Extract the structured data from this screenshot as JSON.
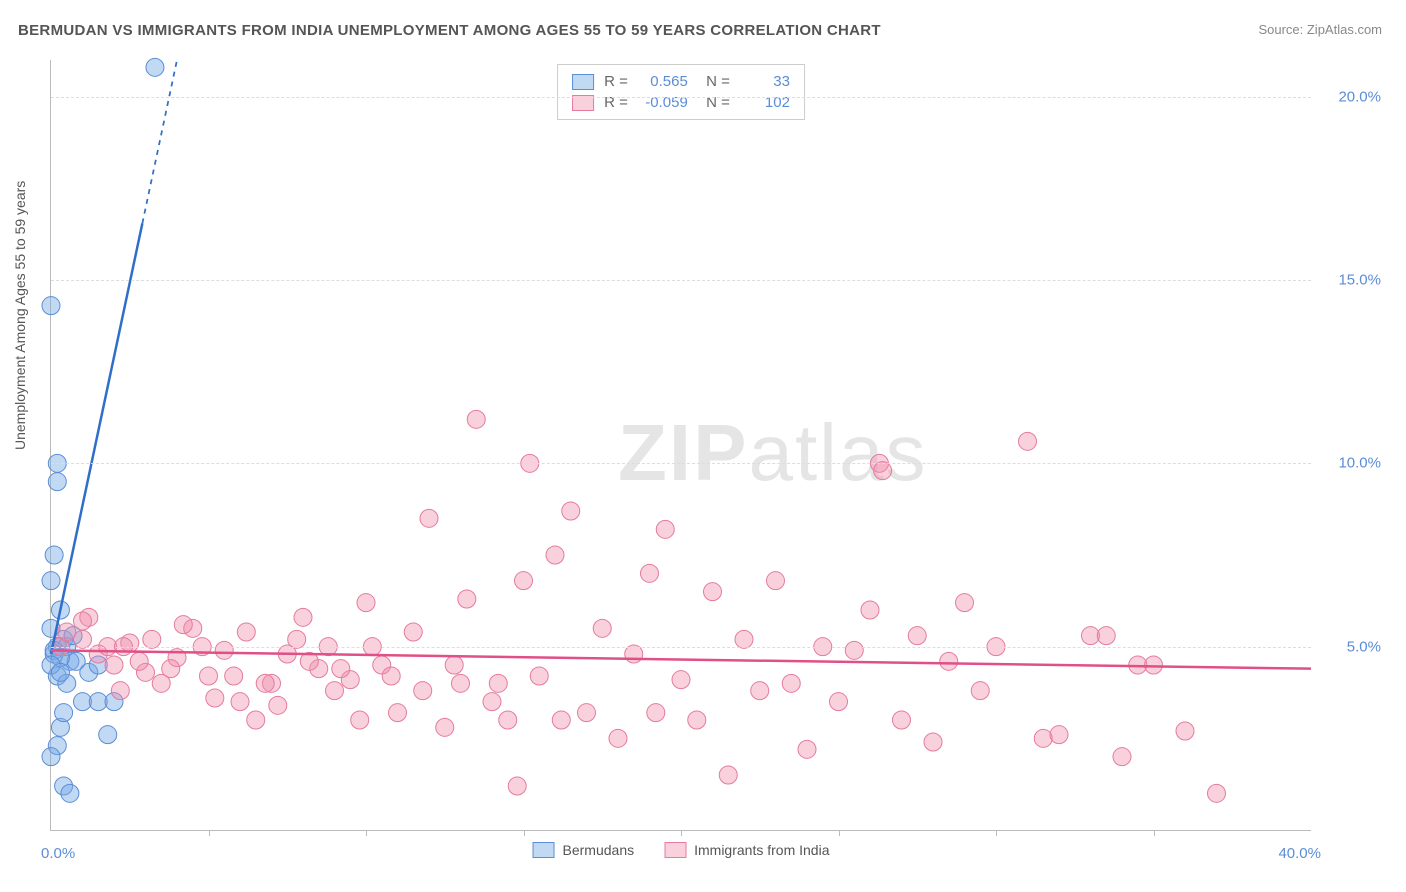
{
  "title": "BERMUDAN VS IMMIGRANTS FROM INDIA UNEMPLOYMENT AMONG AGES 55 TO 59 YEARS CORRELATION CHART",
  "source": "Source: ZipAtlas.com",
  "ylabel": "Unemployment Among Ages 55 to 59 years",
  "watermark_a": "ZIP",
  "watermark_b": "atlas",
  "chart": {
    "type": "scatter",
    "xlim": [
      0,
      40
    ],
    "ylim": [
      0,
      21
    ],
    "x_tick_labels": {
      "min": "0.0%",
      "max": "40.0%"
    },
    "x_minor_ticks": [
      5,
      10,
      15,
      20,
      25,
      30,
      35
    ],
    "y_ticks": [
      5,
      10,
      15,
      20
    ],
    "y_tick_labels": [
      "5.0%",
      "10.0%",
      "15.0%",
      "20.0%"
    ],
    "grid_color": "#dddddd",
    "background_color": "#ffffff",
    "series": [
      {
        "name": "Bermudans",
        "color_fill": "rgba(120,170,230,0.45)",
        "color_stroke": "#5b8dd6",
        "marker_radius": 9,
        "R": "0.565",
        "N": "33",
        "trend": {
          "x1": 0,
          "y1": 4.8,
          "x2": 4,
          "y2": 21,
          "color": "#2f6fc9",
          "width": 2.5,
          "dashed_from_x": 2.9
        },
        "points": [
          [
            0.0,
            14.3
          ],
          [
            0.2,
            10.0
          ],
          [
            0.2,
            9.5
          ],
          [
            0.1,
            7.5
          ],
          [
            0.0,
            6.8
          ],
          [
            0.3,
            6.0
          ],
          [
            0.0,
            5.5
          ],
          [
            0.4,
            5.2
          ],
          [
            0.2,
            5.0
          ],
          [
            0.5,
            5.0
          ],
          [
            0.1,
            4.8
          ],
          [
            0.6,
            4.6
          ],
          [
            0.8,
            4.6
          ],
          [
            1.2,
            4.3
          ],
          [
            1.5,
            4.5
          ],
          [
            0.2,
            4.2
          ],
          [
            0.5,
            4.0
          ],
          [
            1.0,
            3.5
          ],
          [
            1.5,
            3.5
          ],
          [
            2.0,
            3.5
          ],
          [
            0.3,
            2.8
          ],
          [
            1.8,
            2.6
          ],
          [
            0.2,
            2.3
          ],
          [
            0.0,
            2.0
          ],
          [
            0.4,
            1.2
          ],
          [
            0.6,
            1.0
          ],
          [
            3.3,
            20.8
          ],
          [
            0.1,
            4.9
          ],
          [
            0.3,
            4.7
          ],
          [
            0.4,
            3.2
          ],
          [
            0.7,
            5.3
          ],
          [
            0.0,
            4.5
          ],
          [
            0.3,
            4.3
          ]
        ]
      },
      {
        "name": "Immigrants from India",
        "color_fill": "rgba(240,140,170,0.40)",
        "color_stroke": "#e57ba0",
        "marker_radius": 9,
        "R": "-0.059",
        "N": "102",
        "trend": {
          "x1": 0,
          "y1": 4.9,
          "x2": 40,
          "y2": 4.4,
          "color": "#e04f86",
          "width": 2.5
        },
        "points": [
          [
            0.3,
            5.0
          ],
          [
            1.0,
            5.2
          ],
          [
            1.5,
            4.8
          ],
          [
            2.0,
            4.5
          ],
          [
            2.5,
            5.1
          ],
          [
            3.0,
            4.3
          ],
          [
            3.5,
            4.0
          ],
          [
            4.0,
            4.7
          ],
          [
            4.5,
            5.5
          ],
          [
            5.0,
            4.2
          ],
          [
            5.5,
            4.9
          ],
          [
            6.0,
            3.5
          ],
          [
            6.5,
            3.0
          ],
          [
            7.0,
            4.0
          ],
          [
            7.5,
            4.8
          ],
          [
            8.0,
            5.8
          ],
          [
            8.5,
            4.4
          ],
          [
            9.0,
            3.8
          ],
          [
            9.5,
            4.1
          ],
          [
            10.0,
            6.2
          ],
          [
            10.5,
            4.5
          ],
          [
            11.0,
            3.2
          ],
          [
            11.5,
            5.4
          ],
          [
            12.0,
            8.5
          ],
          [
            12.5,
            2.8
          ],
          [
            13.0,
            4.0
          ],
          [
            13.5,
            11.2
          ],
          [
            14.0,
            3.5
          ],
          [
            14.5,
            3.0
          ],
          [
            15.0,
            6.8
          ],
          [
            15.2,
            10.0
          ],
          [
            15.5,
            4.2
          ],
          [
            16.0,
            7.5
          ],
          [
            16.5,
            8.7
          ],
          [
            17.0,
            3.2
          ],
          [
            17.5,
            5.5
          ],
          [
            18.0,
            2.5
          ],
          [
            18.5,
            4.8
          ],
          [
            19.0,
            7.0
          ],
          [
            19.5,
            8.2
          ],
          [
            20.0,
            4.1
          ],
          [
            20.5,
            3.0
          ],
          [
            21.0,
            6.5
          ],
          [
            21.5,
            1.5
          ],
          [
            22.0,
            5.2
          ],
          [
            22.5,
            3.8
          ],
          [
            23.0,
            6.8
          ],
          [
            23.5,
            4.0
          ],
          [
            24.0,
            2.2
          ],
          [
            24.5,
            5.0
          ],
          [
            25.0,
            3.5
          ],
          [
            25.5,
            4.9
          ],
          [
            26.0,
            6.0
          ],
          [
            26.3,
            10.0
          ],
          [
            26.4,
            9.8
          ],
          [
            27.0,
            3.0
          ],
          [
            27.5,
            5.3
          ],
          [
            28.0,
            2.4
          ],
          [
            28.5,
            4.6
          ],
          [
            29.0,
            6.2
          ],
          [
            29.5,
            3.8
          ],
          [
            30.0,
            5.0
          ],
          [
            31.0,
            10.6
          ],
          [
            31.5,
            2.5
          ],
          [
            32.0,
            2.6
          ],
          [
            33.0,
            5.3
          ],
          [
            34.0,
            2.0
          ],
          [
            35.0,
            4.5
          ],
          [
            36.0,
            2.7
          ],
          [
            37.0,
            1.0
          ],
          [
            0.5,
            5.4
          ],
          [
            1.2,
            5.8
          ],
          [
            1.8,
            5.0
          ],
          [
            2.2,
            3.8
          ],
          [
            2.8,
            4.6
          ],
          [
            3.2,
            5.2
          ],
          [
            3.8,
            4.4
          ],
          [
            4.2,
            5.6
          ],
          [
            4.8,
            5.0
          ],
          [
            5.2,
            3.6
          ],
          [
            5.8,
            4.2
          ],
          [
            6.2,
            5.4
          ],
          [
            6.8,
            4.0
          ],
          [
            7.2,
            3.4
          ],
          [
            7.8,
            5.2
          ],
          [
            8.2,
            4.6
          ],
          [
            8.8,
            5.0
          ],
          [
            9.2,
            4.4
          ],
          [
            9.8,
            3.0
          ],
          [
            10.2,
            5.0
          ],
          [
            33.5,
            5.3
          ],
          [
            34.5,
            4.5
          ],
          [
            14.8,
            1.2
          ],
          [
            16.2,
            3.0
          ],
          [
            19.2,
            3.2
          ],
          [
            13.2,
            6.3
          ],
          [
            11.8,
            3.8
          ],
          [
            10.8,
            4.2
          ],
          [
            12.8,
            4.5
          ],
          [
            14.2,
            4.0
          ],
          [
            1.0,
            5.7
          ],
          [
            2.3,
            5.0
          ]
        ]
      }
    ]
  },
  "legend_bottom": [
    {
      "label": "Bermudans",
      "fill": "rgba(120,170,230,0.45)",
      "stroke": "#5b8dd6"
    },
    {
      "label": "Immigrants from India",
      "fill": "rgba(240,140,170,0.40)",
      "stroke": "#e57ba0"
    }
  ]
}
